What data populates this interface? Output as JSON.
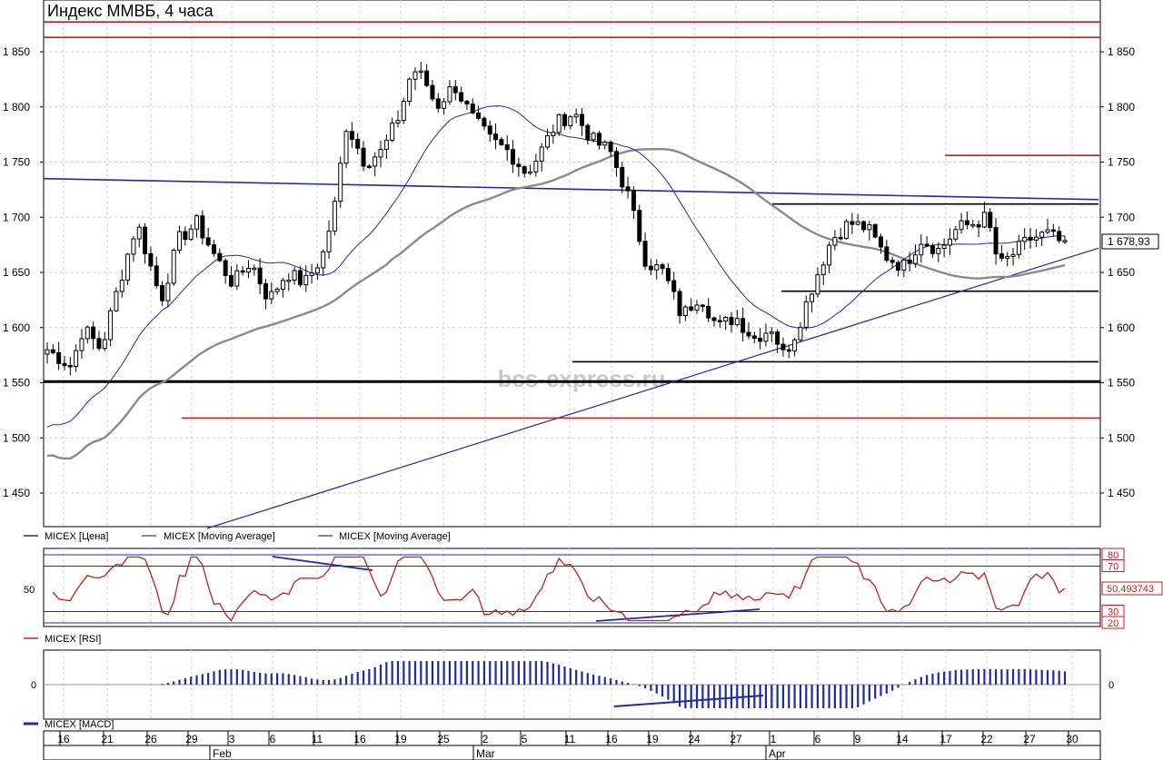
{
  "title": "Индекс ММВБ, 4 часа",
  "watermark": "bcs-express.ru",
  "main": {
    "y_ticks": [
      "1 850",
      "1 800",
      "1 750",
      "1 700",
      "1 650",
      "1 600",
      "1 550",
      "1 500",
      "1 450"
    ],
    "last_price_label": "1 678,93",
    "legend": [
      "MICEX [Цена]",
      "MICEX [Moving Average]",
      "MICEX [Moving Average]"
    ]
  },
  "rsi": {
    "ticks_left": [
      "50"
    ],
    "ticks_right": [
      "80",
      "70",
      "30",
      "20"
    ],
    "value_label": "50,493743",
    "legend": "MICEX [RSI]"
  },
  "macd": {
    "ticks_left": [
      "0"
    ],
    "ticks_right": [
      "0"
    ],
    "legend": "MICEX [MACD]"
  },
  "x_axis": {
    "days": [
      "16",
      "21",
      "26",
      "29",
      "3",
      "6",
      "11",
      "16",
      "19",
      "25",
      "2",
      "5",
      "11",
      "16",
      "19",
      "24",
      "27",
      "1",
      "6",
      "9",
      "14",
      "17",
      "22",
      "27",
      "30"
    ],
    "months": [
      "Feb",
      "Mar",
      "Apr"
    ]
  },
  "colors": {
    "candle": "#000000",
    "ma_slow": "#8a8a8a",
    "ma_fast": "#1f2aa8",
    "trend_blue": "#1f2aa8",
    "level_red": "#cc1a1a",
    "rsi_line": "#c02020",
    "macd_bar": "#1f2aa8",
    "grid": "#cfcfcf"
  },
  "chart_data": [
    {
      "type": "candlestick",
      "title": "Индекс ММВБ, 4 часа",
      "ylim": [
        1420,
        1880
      ],
      "price_path": [
        [
          0,
          1580
        ],
        [
          4,
          1565
        ],
        [
          6,
          1600
        ],
        [
          9,
          1580
        ],
        [
          12,
          1640
        ],
        [
          15,
          1695
        ],
        [
          17,
          1660
        ],
        [
          19,
          1625
        ],
        [
          22,
          1680
        ],
        [
          25,
          1695
        ],
        [
          28,
          1665
        ],
        [
          31,
          1640
        ],
        [
          34,
          1660
        ],
        [
          37,
          1625
        ],
        [
          40,
          1650
        ],
        [
          43,
          1640
        ],
        [
          46,
          1665
        ],
        [
          48,
          1710
        ],
        [
          50,
          1785
        ],
        [
          53,
          1750
        ],
        [
          56,
          1760
        ],
        [
          59,
          1795
        ],
        [
          61,
          1835
        ],
        [
          63,
          1825
        ],
        [
          65,
          1800
        ],
        [
          68,
          1820
        ],
        [
          71,
          1790
        ],
        [
          74,
          1770
        ],
        [
          77,
          1760
        ],
        [
          80,
          1740
        ],
        [
          82,
          1755
        ],
        [
          85,
          1785
        ],
        [
          88,
          1795
        ],
        [
          91,
          1770
        ],
        [
          94,
          1760
        ],
        [
          97,
          1720
        ],
        [
          100,
          1660
        ],
        [
          103,
          1650
        ],
        [
          106,
          1610
        ],
        [
          109,
          1630
        ],
        [
          112,
          1600
        ],
        [
          115,
          1610
        ],
        [
          118,
          1590
        ],
        [
          121,
          1600
        ],
        [
          123,
          1575
        ],
        [
          125,
          1595
        ],
        [
          128,
          1640
        ],
        [
          131,
          1680
        ],
        [
          134,
          1695
        ],
        [
          137,
          1690
        ],
        [
          140,
          1665
        ],
        [
          143,
          1655
        ],
        [
          146,
          1680
        ],
        [
          149,
          1670
        ],
        [
          152,
          1690
        ],
        [
          155,
          1695
        ],
        [
          157,
          1700
        ],
        [
          159,
          1655
        ],
        [
          161,
          1665
        ],
        [
          164,
          1680
        ],
        [
          167,
          1685
        ],
        [
          170,
          1675
        ]
      ],
      "levels_red": [
        1877,
        1863,
        1756,
        1518
      ],
      "levels_black": [
        1712,
        1633,
        1569,
        1551
      ],
      "last_price": 1678.93
    },
    {
      "type": "line",
      "name": "MICEX [RSI]",
      "ylim": [
        15,
        85
      ],
      "guides": [
        80,
        70,
        30,
        20
      ],
      "last_value": 50.493743
    },
    {
      "type": "bar",
      "name": "MICEX [MACD]",
      "zero_line": 0
    }
  ]
}
